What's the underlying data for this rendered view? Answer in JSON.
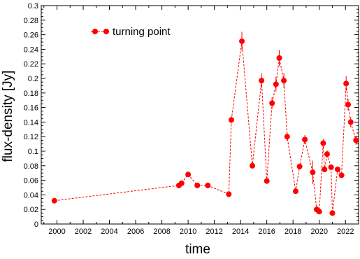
{
  "chart_data": {
    "type": "line",
    "xlabel": "time",
    "ylabel": "flux-density [Jy]",
    "xlim": [
      1998.8,
      2023.0
    ],
    "ylim": [
      0,
      0.3
    ],
    "xticks": [
      2000,
      2002,
      2004,
      2006,
      2008,
      2010,
      2012,
      2014,
      2016,
      2018,
      2020,
      2022
    ],
    "xtick_labels": [
      "2000",
      "2002",
      "2004",
      "2006",
      "2008",
      "2010",
      "2012",
      "2014",
      "2016",
      "2018",
      "2020",
      "2022"
    ],
    "yticks": [
      0,
      0.02,
      0.04,
      0.06,
      0.08,
      0.1,
      0.12,
      0.14,
      0.16,
      0.18,
      0.2,
      0.22,
      0.24,
      0.26,
      0.28,
      0.3
    ],
    "ytick_labels": [
      "0",
      "0.02",
      "0.04",
      "0.06",
      "0.08",
      "0.1",
      "0.12",
      "0.14",
      "0.16",
      "0.18",
      "0.2",
      "0.22",
      "0.24",
      "0.26",
      "0.28",
      "0.3"
    ],
    "grid": false,
    "legend_position": "top-left",
    "line_style": "dashed",
    "color": "#ff0000",
    "series": [
      {
        "name": "turning point",
        "x": [
          1999.8,
          2009.3,
          2009.5,
          2010.0,
          2010.7,
          2011.5,
          2013.1,
          2013.3,
          2014.1,
          2014.9,
          2015.6,
          2016.0,
          2016.4,
          2016.7,
          2016.95,
          2017.3,
          2017.55,
          2018.2,
          2018.5,
          2018.9,
          2019.5,
          2019.8,
          2020.0,
          2020.3,
          2020.4,
          2020.6,
          2020.9,
          2021.0,
          2021.4,
          2021.7,
          2022.05,
          2022.2,
          2022.4,
          2022.8
        ],
        "y": [
          0.032,
          0.053,
          0.056,
          0.068,
          0.053,
          0.053,
          0.041,
          0.143,
          0.251,
          0.08,
          0.197,
          0.059,
          0.166,
          0.192,
          0.228,
          0.197,
          0.12,
          0.045,
          0.079,
          0.116,
          0.071,
          0.02,
          0.017,
          0.111,
          0.075,
          0.096,
          0.078,
          0.015,
          0.075,
          0.067,
          0.193,
          0.164,
          0.14,
          0.115
        ],
        "err": [
          0.002,
          0.002,
          0.002,
          0.003,
          0.002,
          0.002,
          0.002,
          0.005,
          0.013,
          0.004,
          0.01,
          0.003,
          0.008,
          0.01,
          0.011,
          0.01,
          0.006,
          0.003,
          0.004,
          0.006,
          0.016,
          0.005,
          0.002,
          0.006,
          0.004,
          0.005,
          0.004,
          0.002,
          0.004,
          0.003,
          0.01,
          0.008,
          0.007,
          0.006
        ]
      }
    ]
  }
}
